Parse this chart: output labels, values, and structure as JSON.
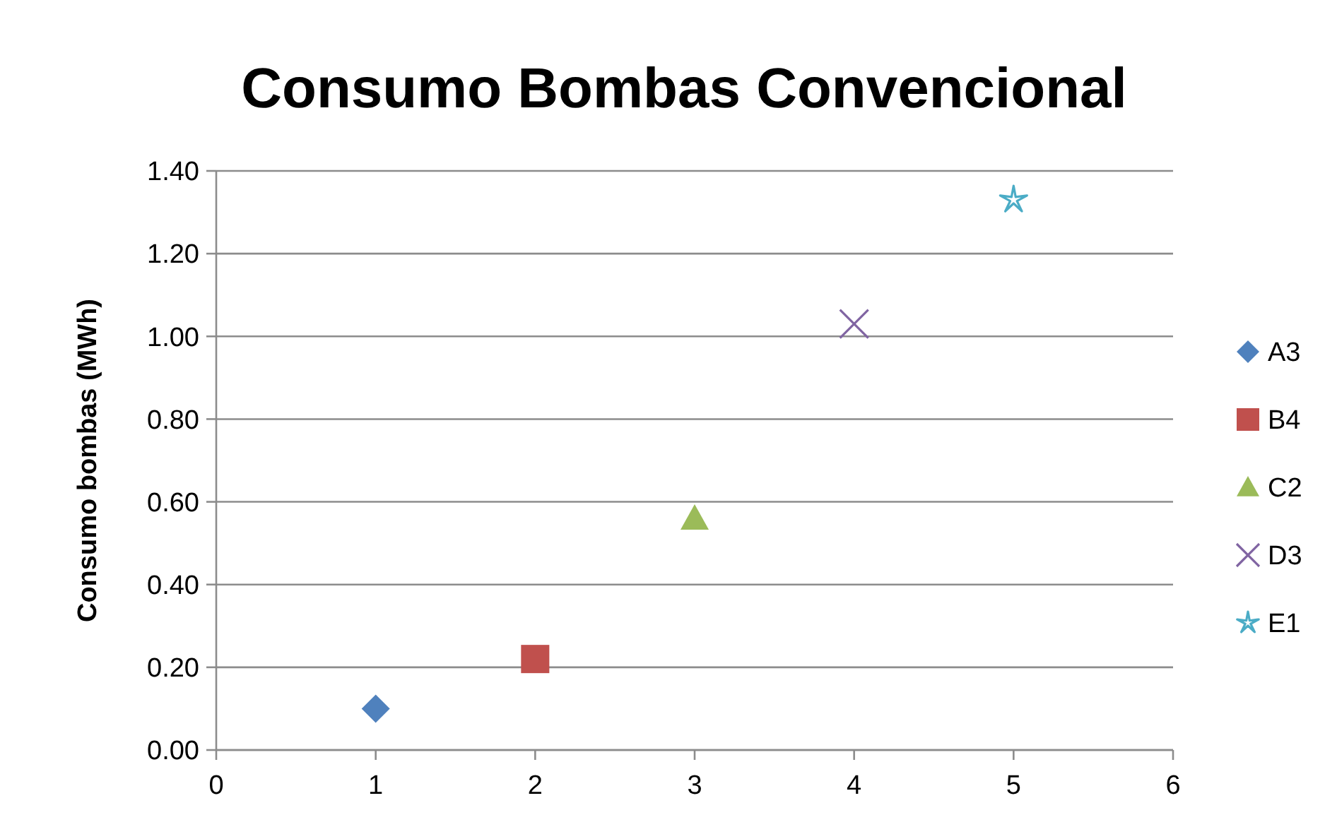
{
  "chart_data": {
    "type": "scatter",
    "title": "Consumo Bombas Convencional",
    "ylabel": "Consumo bombas (MWh)",
    "xlim": [
      0,
      6
    ],
    "xticks": [
      0,
      1,
      2,
      3,
      4,
      5,
      6
    ],
    "ylim": [
      0,
      1.4
    ],
    "yticks": [
      {
        "value": 0,
        "label": "0.00"
      },
      {
        "value": 0.2,
        "label": "0.20"
      },
      {
        "value": 0.4,
        "label": "0.40"
      },
      {
        "value": 0.6,
        "label": "0.60"
      },
      {
        "value": 0.8,
        "label": "0.80"
      },
      {
        "value": 1,
        "label": "1.00"
      },
      {
        "value": 1.2,
        "label": "1.20"
      },
      {
        "value": 1.4,
        "label": "1.40"
      }
    ],
    "grid": "y",
    "legend": "right",
    "series": [
      {
        "name": "A3",
        "color": "#4f81bd",
        "marker": "diamond",
        "x": [
          1
        ],
        "values": [
          0.1
        ]
      },
      {
        "name": "B4",
        "color": "#c0504d",
        "marker": "square",
        "x": [
          2
        ],
        "values": [
          0.22
        ]
      },
      {
        "name": "C2",
        "color": "#9bbb59",
        "marker": "triangle",
        "x": [
          3
        ],
        "values": [
          0.56
        ]
      },
      {
        "name": "D3",
        "color": "#8064a2",
        "marker": "cross",
        "x": [
          4
        ],
        "values": [
          1.03
        ]
      },
      {
        "name": "E1",
        "color": "#4bacc6",
        "marker": "star",
        "x": [
          5
        ],
        "values": [
          1.33
        ]
      }
    ]
  }
}
